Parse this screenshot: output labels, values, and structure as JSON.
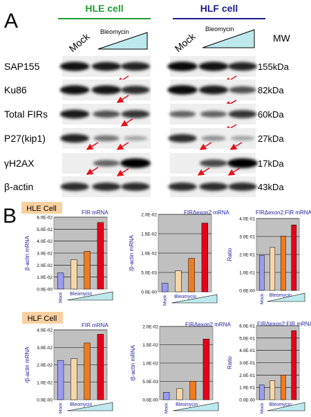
{
  "panel_a": {
    "label": "A",
    "hle_title": "HLE cell",
    "hlf_title": "HLF cell",
    "mock_label": "Mock",
    "treatment_label": "Bleomycin",
    "mw_header": "MW",
    "rows": [
      {
        "name": "SAP155",
        "mw": "155kDa"
      },
      {
        "name": "Ku86",
        "mw": "82kDa"
      },
      {
        "name": "Total FIRs",
        "mw": "60kDa"
      },
      {
        "name": "P27(kip1)",
        "mw": "27kDa"
      },
      {
        "name": "γH2AX",
        "mw": "17kDa"
      },
      {
        "name": "β-actin",
        "mw": "43kDa"
      }
    ],
    "bands": {
      "hle": [
        [
          0.9,
          0.85,
          0.8
        ],
        [
          0.9,
          0.88,
          0.75
        ],
        [
          0.85,
          0.55,
          0.7
        ],
        [
          0.8,
          0.35,
          0.1
        ],
        [
          0.0,
          0.45,
          1.0
        ],
        [
          0.75,
          0.75,
          0.75
        ]
      ],
      "hlf": [
        [
          0.95,
          0.9,
          0.8
        ],
        [
          0.95,
          0.85,
          0.55
        ],
        [
          0.45,
          0.45,
          0.7
        ],
        [
          0.75,
          0.2,
          0.1
        ],
        [
          0.0,
          0.6,
          1.0
        ],
        [
          0.75,
          0.75,
          0.75
        ]
      ]
    }
  },
  "panel_b": {
    "label": "B",
    "hle_tag": "HLE Cell",
    "hlf_tag": "HLF Cell",
    "x_mock": "Mock",
    "x_treatment": "Bleomycin",
    "bar_colors": [
      "#9b9bf0",
      "#f8d6a8",
      "#f07a1e",
      "#e8001a"
    ],
    "triangle_color": "#bde9ec"
  },
  "chart_data": [
    {
      "type": "bar",
      "title": "FIR mRNA",
      "ylabel": "β-actin mRNA",
      "ylim": [
        0,
        0.06
      ],
      "yticks": [
        "0.0E-00",
        "1.0E-02",
        "2.0E-02",
        "3.0E-02",
        "4.0E-02",
        "5.0E-02",
        "6.0E-02"
      ],
      "values": [
        0.0135,
        0.0245,
        0.0315,
        0.0555
      ]
    },
    {
      "type": "bar",
      "title": "FIRΔexon2 mRNA",
      "ylabel": "/β-actin mRNA",
      "ylim": [
        0,
        0.025
      ],
      "yticks": [
        "0.0E-00",
        "5.0E-03",
        "1.0E-02",
        "1.5E-02",
        "2.0E-02"
      ],
      "values": [
        0.0028,
        0.0068,
        0.0108,
        0.0222
      ]
    },
    {
      "type": "bar",
      "title": "FIRΔexon2:FIR mRNA",
      "ylabel": "Ratio",
      "ylim": [
        0,
        0.45
      ],
      "yticks": [
        "0.0E-00",
        "1.0E-01",
        "2.0E-01",
        "3.0E-01",
        "4.0E-01"
      ],
      "values": [
        0.22,
        0.27,
        0.34,
        0.41
      ]
    },
    {
      "type": "bar",
      "title": "FIR mRNA",
      "ylabel": "/β-actin mRNA",
      "ylim": [
        0,
        0.04
      ],
      "yticks": [
        "0.0E-00",
        "1.0E-02",
        "2.0E-02",
        "3.0E-02",
        "4.0E-02"
      ],
      "values": [
        0.0225,
        0.0235,
        0.0325,
        0.0375
      ]
    },
    {
      "type": "bar",
      "title": "FIRΔexon2 mRNA",
      "ylabel": "/β-actin mRNA",
      "ylim": [
        0,
        0.025
      ],
      "yticks": [
        "0.0E-00",
        "5.0E-03",
        "1.0E-02",
        "1.5E-02",
        "2.0E-02"
      ],
      "values": [
        0.0025,
        0.0038,
        0.0063,
        0.0207
      ]
    },
    {
      "type": "bar",
      "title": "FIRΔexon2:FIR mRNA",
      "ylabel": "Ratio",
      "ylim": [
        0,
        0.6
      ],
      "yticks": [
        "0.0E-00",
        "1.0E-01",
        "2.0E-01",
        "3.0E-01",
        "4.0E-01",
        "5.0E-01",
        "6.0E-01"
      ],
      "values": [
        0.12,
        0.155,
        0.2,
        0.56
      ]
    }
  ]
}
